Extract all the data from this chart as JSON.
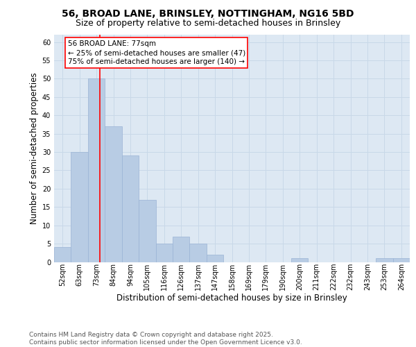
{
  "title_line1": "56, BROAD LANE, BRINSLEY, NOTTINGHAM, NG16 5BD",
  "title_line2": "Size of property relative to semi-detached houses in Brinsley",
  "xlabel": "Distribution of semi-detached houses by size in Brinsley",
  "ylabel": "Number of semi-detached properties",
  "categories": [
    "52sqm",
    "63sqm",
    "73sqm",
    "84sqm",
    "94sqm",
    "105sqm",
    "116sqm",
    "126sqm",
    "137sqm",
    "147sqm",
    "158sqm",
    "169sqm",
    "179sqm",
    "190sqm",
    "200sqm",
    "211sqm",
    "222sqm",
    "232sqm",
    "243sqm",
    "253sqm",
    "264sqm"
  ],
  "values": [
    4,
    30,
    50,
    37,
    29,
    17,
    5,
    7,
    5,
    2,
    0,
    0,
    0,
    0,
    1,
    0,
    0,
    0,
    0,
    1,
    1
  ],
  "bar_color": "#b8cce4",
  "bar_edge_color": "#9ab3d5",
  "grid_color": "#c8d8e8",
  "background_color": "#dde8f3",
  "annotation_text": "56 BROAD LANE: 77sqm\n← 25% of semi-detached houses are smaller (47)\n75% of semi-detached houses are larger (140) →",
  "red_line_x": 2.2,
  "ylim_max": 62,
  "yticks": [
    0,
    5,
    10,
    15,
    20,
    25,
    30,
    35,
    40,
    45,
    50,
    55,
    60
  ],
  "footer_text": "Contains HM Land Registry data © Crown copyright and database right 2025.\nContains public sector information licensed under the Open Government Licence v3.0.",
  "title_fontsize": 10,
  "subtitle_fontsize": 9,
  "axis_label_fontsize": 8.5,
  "tick_fontsize": 7,
  "annotation_fontsize": 7.5,
  "footer_fontsize": 6.5
}
